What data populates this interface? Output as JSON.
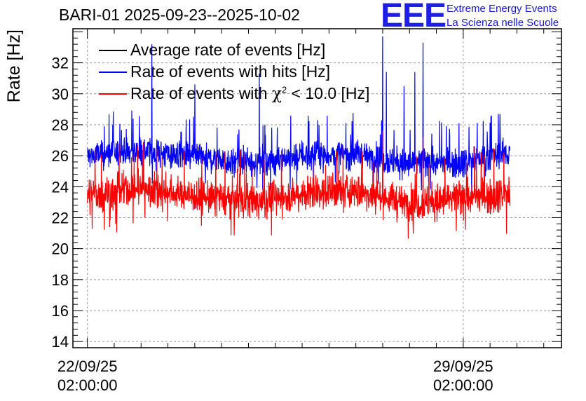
{
  "page": {
    "title": "BARI-01 2025-09-23--2025-10-02",
    "logo_text": "EEE",
    "logo_line1": "Extreme Energy Events",
    "logo_line2": "La Scienza nelle Scuole"
  },
  "colors": {
    "average": "#000000",
    "hits": "#0000ff",
    "chi2": "#ff0000",
    "logo": "#1e1ee6"
  },
  "chart_data": {
    "type": "line",
    "title": "BARI-01 2025-09-23--2025-10-02",
    "ylabel": "Rate [Hz]",
    "xlabel": "",
    "ylim": [
      13.6,
      34.2
    ],
    "yticks": [
      14,
      16,
      18,
      20,
      22,
      24,
      26,
      28,
      30,
      32
    ],
    "xlim_days": [
      -0.27,
      8.83
    ],
    "xticks": [
      {
        "day": 0,
        "date": "22/09/25",
        "time": "02:00:00"
      },
      {
        "day": 7,
        "date": "29/09/25",
        "time": "02:00:00"
      }
    ],
    "data_range_days": [
      0.0,
      7.87
    ],
    "grid": true,
    "legend_position": "top-left",
    "series": [
      {
        "name": "Average rate of events [Hz]",
        "legend_label": "Average rate of events [Hz]",
        "color": "#000000",
        "values": []
      },
      {
        "name": "Rate of events with hits [Hz]",
        "legend_label": "Rate of events with hits [Hz]",
        "color": "#0000ff",
        "trend_days": [
          0,
          1,
          2,
          3,
          4,
          5,
          6,
          7,
          7.87
        ],
        "trend_values": [
          26.0,
          26.3,
          25.9,
          25.5,
          26.0,
          26.1,
          25.4,
          25.6,
          26.2
        ],
        "noise_range": [
          24.7,
          27.6
        ],
        "spikes": [
          {
            "day": 1.2,
            "value": 33.2
          },
          {
            "day": 2.0,
            "value": 30.6
          },
          {
            "day": 3.2,
            "value": 31.3
          },
          {
            "day": 5.5,
            "value": 33.7
          },
          {
            "day": 5.57,
            "value": 31.4
          },
          {
            "day": 5.9,
            "value": 30.5
          },
          {
            "day": 6.1,
            "value": 31.4
          },
          {
            "day": 6.25,
            "value": 33.3
          }
        ]
      },
      {
        "name": "Rate of events with chi2 < 10.0 [Hz]",
        "legend_prefix": "Rate of events with ",
        "legend_symbol": "χ",
        "legend_sup": "2",
        "legend_suffix": " < 10.0 [Hz]",
        "color": "#ff0000",
        "trend_days": [
          0,
          1,
          2,
          3,
          4,
          5,
          6,
          7,
          7.87
        ],
        "trend_values": [
          23.4,
          23.9,
          23.4,
          23.0,
          23.6,
          23.7,
          22.9,
          23.2,
          23.6
        ],
        "noise_range": [
          21.6,
          25.1
        ],
        "spikes": [
          {
            "day": 5.5,
            "value": 27.6
          },
          {
            "day": 6.25,
            "value": 27.2
          },
          {
            "day": 4.65,
            "value": 26.3
          }
        ]
      }
    ]
  }
}
